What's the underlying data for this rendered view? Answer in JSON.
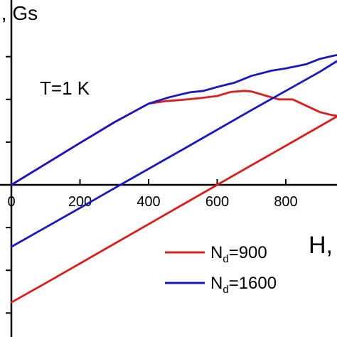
{
  "chart_data": {
    "type": "line",
    "ylabel": "I, Gs",
    "xlabel": "H,",
    "annotation": "T=1 K",
    "xlim": [
      -30,
      960
    ],
    "x_ticks": [
      0,
      200,
      400,
      600,
      800
    ],
    "x_tick_labels": [
      "0",
      "200",
      "400",
      "600",
      "800"
    ],
    "y_ticks": [
      -600,
      -400,
      -200,
      200,
      400,
      600
    ],
    "grid": false,
    "legend_position": "bottom-right",
    "series": [
      {
        "name": "N_d=900",
        "legend_label": {
          "base": "N",
          "sub": "d",
          "rest": "=900"
        },
        "color": "#dd1c1c",
        "branches": [
          {
            "x": [
              0,
              100,
              200,
              300,
              400,
              450,
              500,
              550,
              600,
              640,
              680,
              700,
              740,
              780,
              820,
              860,
              900,
              930,
              960
            ],
            "y": [
              0,
              98,
              196,
              293,
              380,
              392,
              398,
              406,
              416,
              435,
              440,
              437,
              418,
              400,
              400,
              370,
              340,
              328,
              320
            ]
          },
          {
            "x": [
              0,
              100,
              200,
              300,
              400,
              500,
              600,
              700,
              800,
              900,
              960
            ],
            "y": [
              -550,
              -460,
              -368,
              -276,
              -184,
              -92,
              0,
              92,
              183,
              275,
              330
            ]
          }
        ]
      },
      {
        "name": "N_d=1600",
        "legend_label": {
          "base": "N",
          "sub": "d",
          "rest": "=1600"
        },
        "color": "#1717c4",
        "branches": [
          {
            "x": [
              0,
              100,
              200,
              300,
              400,
              460,
              520,
              560,
              600,
              650,
              700,
              760,
              800,
              860,
              900,
              940,
              960
            ],
            "y": [
              0,
              98,
              196,
              293,
              380,
              410,
              433,
              440,
              458,
              478,
              510,
              535,
              545,
              565,
              590,
              605,
              610
            ]
          },
          {
            "x": [
              0,
              100,
              200,
              300,
              400,
              500,
              600,
              700,
              800,
              900,
              960
            ],
            "y": [
              -290,
              -199,
              -108,
              -16,
              75,
              166,
              258,
              350,
              440,
              530,
              590
            ]
          }
        ]
      }
    ]
  }
}
